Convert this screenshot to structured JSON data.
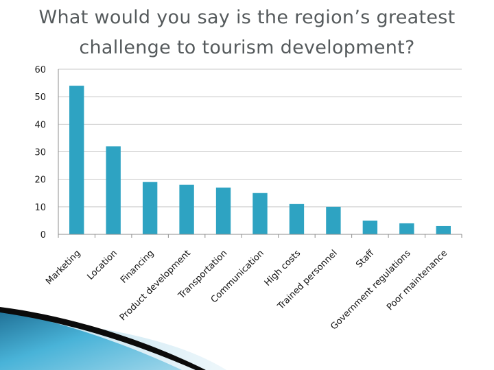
{
  "slide": {
    "title_line1": "What would you say is the region’s greatest",
    "title_line2": "challenge to tourism development?"
  },
  "colors": {
    "bar": "#2ea3c2",
    "grid": "#c8c8c8",
    "axis": "#8c8c8c"
  },
  "chart_data": {
    "type": "bar",
    "categories": [
      "Marketing",
      "Location",
      "Financing",
      "Product development",
      "Transportation",
      "Communication",
      "High costs",
      "Trained personnel",
      "Staff",
      "Government regulations",
      "Poor maintenance"
    ],
    "values": [
      54,
      32,
      19,
      18,
      17,
      15,
      11,
      10,
      5,
      4,
      3
    ],
    "ylim": [
      0,
      60
    ],
    "yticks": [
      "0",
      "10",
      "20",
      "30",
      "40",
      "50",
      "60"
    ],
    "grid": true,
    "legend": "none",
    "xlabel": "",
    "ylabel": ""
  }
}
